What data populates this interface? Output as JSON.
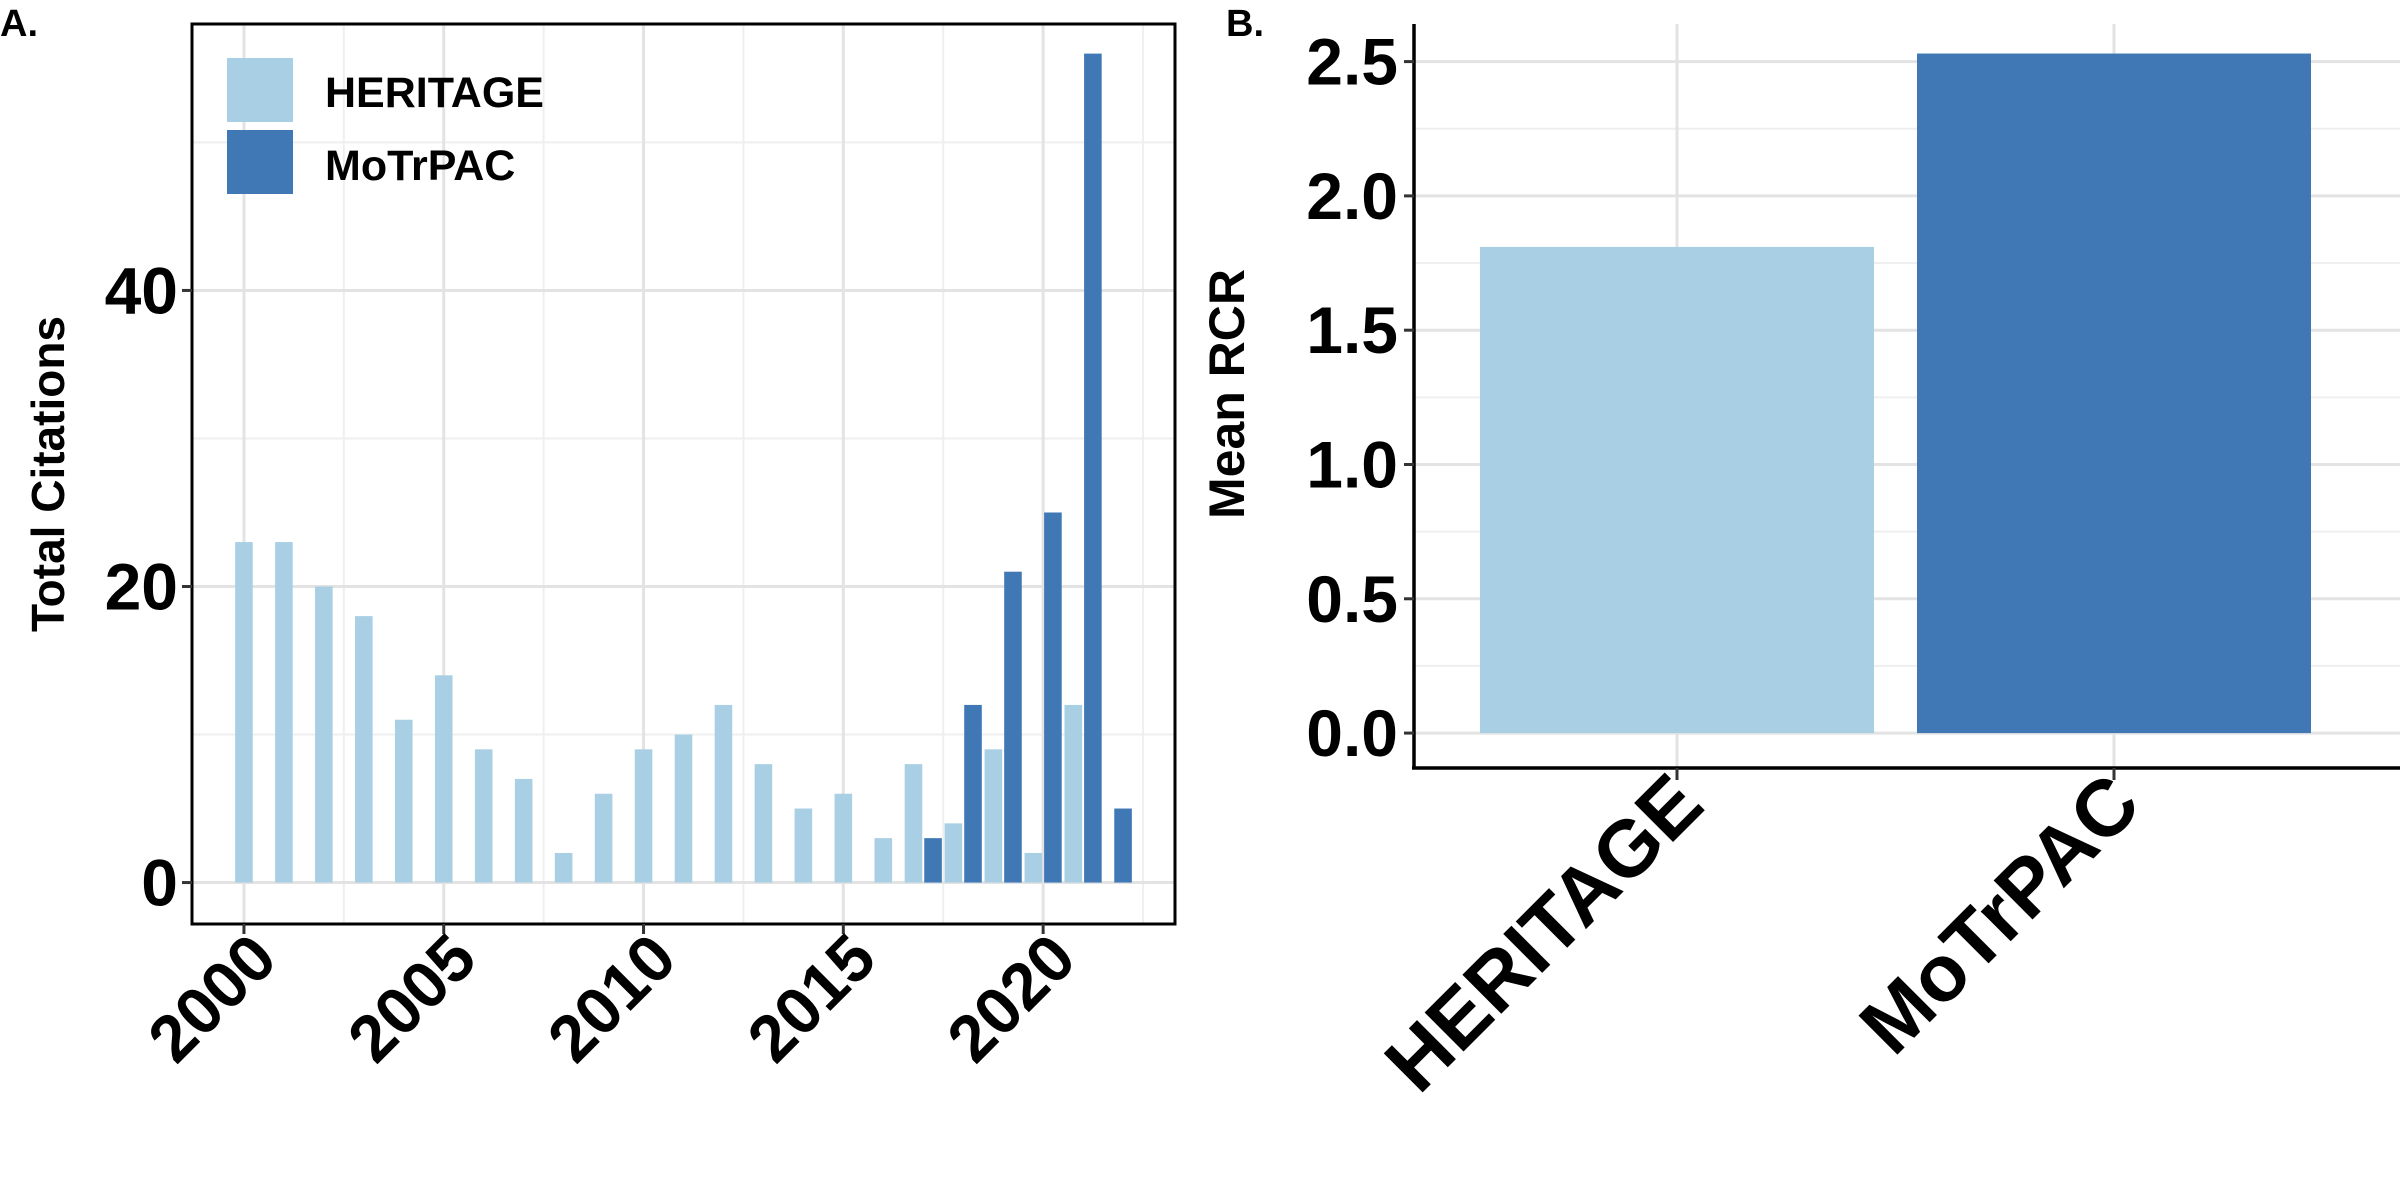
{
  "colors": {
    "heritage": "#a8cfe3",
    "motrpac": "#3f78b4"
  },
  "chart_data": [
    {
      "panel_label": "A.",
      "type": "bar",
      "ylabel": "Total Citations",
      "xlabel": "",
      "ylim": [
        -2.8,
        58
      ],
      "xlim": [
        1998.7,
        2023.3
      ],
      "x_ticks": [
        2000,
        2005,
        2010,
        2015,
        2020
      ],
      "x_tick_labels": [
        "2000",
        "2005",
        "2010",
        "2015",
        "2020"
      ],
      "y_ticks": [
        0,
        20,
        40
      ],
      "y_tick_labels": [
        "0",
        "20",
        "40"
      ],
      "grid": true,
      "legend_position": "top-left",
      "legend": [
        "HERITAGE",
        "MoTrPAC"
      ],
      "series": [
        {
          "name": "HERITAGE",
          "points": [
            {
              "year": 2000,
              "value": 23
            },
            {
              "year": 2001,
              "value": 23
            },
            {
              "year": 2002,
              "value": 20
            },
            {
              "year": 2003,
              "value": 18
            },
            {
              "year": 2004,
              "value": 11
            },
            {
              "year": 2005,
              "value": 14
            },
            {
              "year": 2006,
              "value": 9
            },
            {
              "year": 2007,
              "value": 7
            },
            {
              "year": 2008,
              "value": 2
            },
            {
              "year": 2009,
              "value": 6
            },
            {
              "year": 2010,
              "value": 9
            },
            {
              "year": 2011,
              "value": 10
            },
            {
              "year": 2012,
              "value": 12
            },
            {
              "year": 2013,
              "value": 8
            },
            {
              "year": 2014,
              "value": 5
            },
            {
              "year": 2015,
              "value": 6
            },
            {
              "year": 2016,
              "value": 3
            },
            {
              "year": 2017,
              "value": 8
            },
            {
              "year": 2018,
              "value": 4
            },
            {
              "year": 2019,
              "value": 9
            },
            {
              "year": 2020,
              "value": 2
            },
            {
              "year": 2021,
              "value": 12
            }
          ]
        },
        {
          "name": "MoTrPAC",
          "points": [
            {
              "year": 2017,
              "value": 3
            },
            {
              "year": 2018,
              "value": 12
            },
            {
              "year": 2019,
              "value": 21
            },
            {
              "year": 2020,
              "value": 25
            },
            {
              "year": 2021,
              "value": 56
            },
            {
              "year": 2022,
              "value": 5
            }
          ]
        }
      ]
    },
    {
      "panel_label": "B.",
      "type": "bar",
      "ylabel": "Mean RCR",
      "xlabel": "",
      "categories": [
        "HERITAGE",
        "MoTrPAC"
      ],
      "values": [
        1.81,
        2.53
      ],
      "ylim": [
        -0.13,
        2.64
      ],
      "y_ticks": [
        0.0,
        0.5,
        1.0,
        1.5,
        2.0,
        2.5
      ],
      "y_tick_labels": [
        "0.0",
        "0.5",
        "1.0",
        "1.5",
        "2.0",
        "2.5"
      ],
      "grid": true
    }
  ]
}
